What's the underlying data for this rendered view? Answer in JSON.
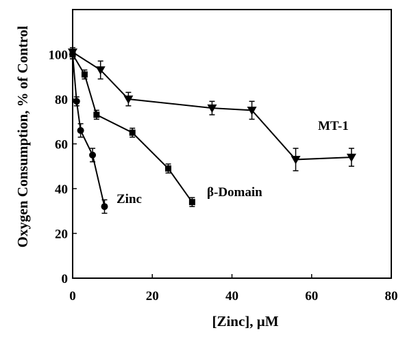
{
  "chart_data": {
    "type": "scatter",
    "title": "",
    "xlabel": "[Zinc], μM",
    "ylabel": "Oxygen Consumption, % of Control",
    "xlim": [
      0,
      80
    ],
    "ylim": [
      0,
      120
    ],
    "x_ticks": [
      "0",
      "20",
      "40",
      "60",
      "80"
    ],
    "y_ticks": [
      "0",
      "20",
      "40",
      "60",
      "80",
      "100"
    ],
    "grid": false,
    "legend": "none",
    "series": [
      {
        "name": "MT-1",
        "marker": "triangle-down",
        "x": [
          0,
          7,
          14,
          35,
          45,
          56,
          70
        ],
        "y": [
          101,
          93,
          80,
          76,
          75,
          53,
          54
        ],
        "err": [
          2,
          4,
          3,
          3,
          4,
          5,
          4
        ]
      },
      {
        "name": "β-Domain",
        "marker": "square",
        "x": [
          0,
          3,
          6,
          15,
          24,
          30
        ],
        "y": [
          100,
          91,
          73,
          65,
          49,
          34
        ],
        "err": [
          2,
          2,
          2,
          2,
          2,
          2
        ]
      },
      {
        "name": "Zinc",
        "marker": "circle",
        "x": [
          0,
          1,
          2,
          5,
          8
        ],
        "y": [
          100,
          79,
          66,
          55,
          32
        ],
        "err": [
          2,
          2,
          3,
          3,
          3
        ]
      }
    ]
  }
}
